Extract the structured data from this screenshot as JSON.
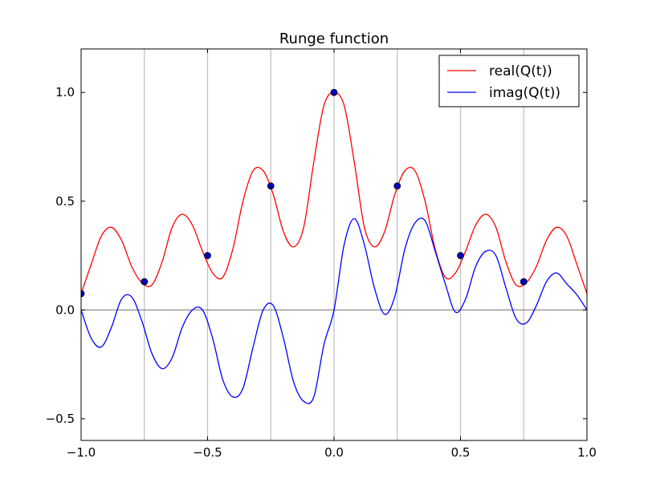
{
  "chart_data": {
    "type": "line",
    "title": "Runge function",
    "xlabel": "",
    "ylabel": "",
    "xlim": [
      -1.0,
      1.0
    ],
    "ylim": [
      -0.6,
      1.2
    ],
    "xticks": [
      -1.0,
      -0.5,
      0.0,
      0.5,
      1.0
    ],
    "xtick_labels": [
      "−1.0",
      "−0.5",
      "0.0",
      "0.5",
      "1.0"
    ],
    "yticks": [
      -0.5,
      0.0,
      0.5,
      1.0
    ],
    "ytick_labels": [
      "−0.5",
      "0.0",
      "0.5",
      "1.0"
    ],
    "vertical_gridlines_at": [
      -0.75,
      -0.5,
      -0.25,
      0.0,
      0.25,
      0.5,
      0.75
    ],
    "zero_line": 0.0,
    "legend_placement": "top-right",
    "series": [
      {
        "name": "real(Q(t))",
        "color": "#ff0000",
        "x": [
          -1.0,
          -0.96,
          -0.92,
          -0.88,
          -0.84,
          -0.8,
          -0.76,
          -0.72,
          -0.68,
          -0.64,
          -0.6,
          -0.56,
          -0.52,
          -0.48,
          -0.44,
          -0.4,
          -0.36,
          -0.32,
          -0.28,
          -0.24,
          -0.2,
          -0.16,
          -0.12,
          -0.08,
          -0.04,
          0.0,
          0.04,
          0.08,
          0.12,
          0.16,
          0.2,
          0.24,
          0.28,
          0.32,
          0.36,
          0.4,
          0.44,
          0.48,
          0.52,
          0.56,
          0.6,
          0.64,
          0.68,
          0.72,
          0.76,
          0.8,
          0.84,
          0.88,
          0.92,
          0.96,
          1.0
        ],
        "values": [
          0.075,
          0.21,
          0.34,
          0.38,
          0.32,
          0.2,
          0.125,
          0.115,
          0.22,
          0.38,
          0.44,
          0.39,
          0.27,
          0.17,
          0.15,
          0.28,
          0.5,
          0.64,
          0.64,
          0.53,
          0.36,
          0.29,
          0.38,
          0.68,
          0.94,
          1.0,
          0.94,
          0.68,
          0.38,
          0.29,
          0.36,
          0.53,
          0.64,
          0.64,
          0.5,
          0.28,
          0.15,
          0.17,
          0.27,
          0.39,
          0.44,
          0.38,
          0.22,
          0.115,
          0.125,
          0.2,
          0.32,
          0.38,
          0.34,
          0.21,
          0.075
        ]
      },
      {
        "name": "imag(Q(t))",
        "color": "#0000ff",
        "x": [
          -1.0,
          -0.96,
          -0.92,
          -0.88,
          -0.84,
          -0.8,
          -0.76,
          -0.72,
          -0.68,
          -0.64,
          -0.6,
          -0.56,
          -0.52,
          -0.48,
          -0.44,
          -0.4,
          -0.36,
          -0.32,
          -0.28,
          -0.24,
          -0.2,
          -0.16,
          -0.12,
          -0.08,
          -0.04,
          0.0,
          0.04,
          0.08,
          0.12,
          0.16,
          0.2,
          0.24,
          0.28,
          0.32,
          0.36,
          0.4,
          0.44,
          0.48,
          0.52,
          0.56,
          0.6,
          0.64,
          0.68,
          0.72,
          0.76,
          0.8,
          0.84,
          0.88,
          0.92,
          0.96,
          1.0
        ],
        "values": [
          0.0,
          -0.13,
          -0.17,
          -0.08,
          0.05,
          0.06,
          -0.05,
          -0.2,
          -0.27,
          -0.22,
          -0.08,
          0.0,
          0.0,
          -0.13,
          -0.32,
          -0.4,
          -0.36,
          -0.17,
          0.0,
          0.02,
          -0.13,
          -0.33,
          -0.42,
          -0.4,
          -0.16,
          0.0,
          0.3,
          0.42,
          0.3,
          0.1,
          -0.02,
          0.06,
          0.28,
          0.4,
          0.41,
          0.27,
          0.12,
          -0.01,
          0.05,
          0.2,
          0.27,
          0.25,
          0.1,
          -0.04,
          -0.06,
          0.02,
          0.13,
          0.17,
          0.12,
          0.07,
          0.0
        ]
      }
    ],
    "points": {
      "x": [
        -1.0,
        -0.75,
        -0.5,
        -0.25,
        0.0,
        0.25,
        0.5,
        0.75
      ],
      "y": [
        0.075,
        0.13,
        0.25,
        0.57,
        1.0,
        0.57,
        0.25,
        0.13
      ],
      "face_color": "#0000bf",
      "edge_color": "#000000"
    }
  }
}
